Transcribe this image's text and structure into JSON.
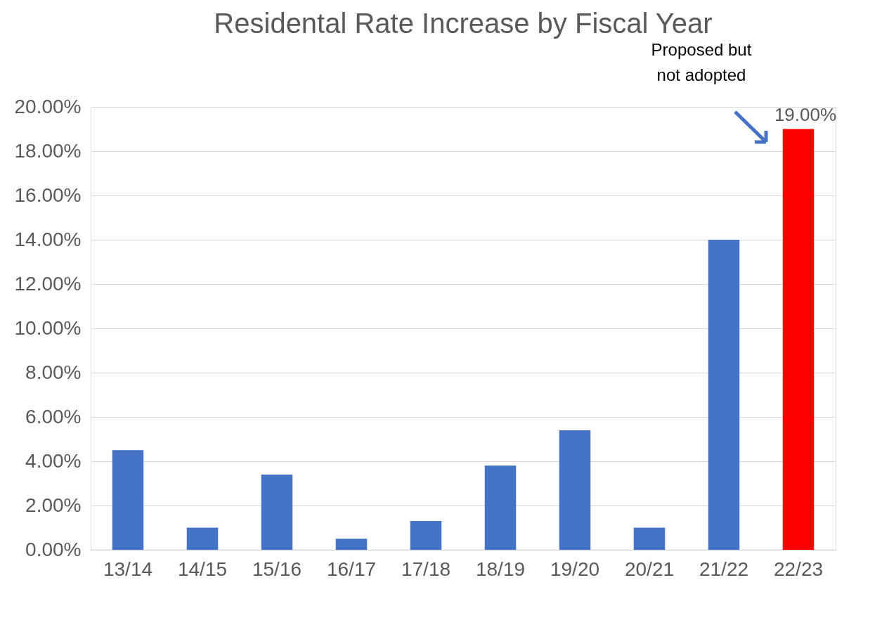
{
  "chart_data": {
    "type": "bar",
    "title": "Residental Rate Increase by Fiscal Year",
    "categories": [
      "13/14",
      "14/15",
      "15/16",
      "16/17",
      "17/18",
      "18/19",
      "19/20",
      "20/21",
      "21/22",
      "22/23"
    ],
    "values": [
      4.5,
      1.0,
      3.4,
      0.5,
      1.3,
      3.8,
      5.4,
      1.0,
      14.0,
      19.0
    ],
    "colors": [
      "#4472c4",
      "#4472c4",
      "#4472c4",
      "#4472c4",
      "#4472c4",
      "#4472c4",
      "#4472c4",
      "#4472c4",
      "#4472c4",
      "#ff0000"
    ],
    "value_labels": [
      null,
      null,
      null,
      null,
      null,
      null,
      null,
      null,
      null,
      "19.00%"
    ],
    "ylim": [
      0,
      20
    ],
    "yticks": [
      {
        "value": 0,
        "label": "0.00%"
      },
      {
        "value": 2,
        "label": "2.00%"
      },
      {
        "value": 4,
        "label": "4.00%"
      },
      {
        "value": 6,
        "label": "6.00%"
      },
      {
        "value": 8,
        "label": "8.00%"
      },
      {
        "value": 10,
        "label": "10.00%"
      },
      {
        "value": 12,
        "label": "12.00%"
      },
      {
        "value": 14,
        "label": "14.00%"
      },
      {
        "value": 16,
        "label": "16.00%"
      },
      {
        "value": 18,
        "label": "18.00%"
      },
      {
        "value": 20,
        "label": "20.00%"
      }
    ],
    "grid": "y",
    "annotations": [
      "Proposed but not adopted"
    ]
  }
}
